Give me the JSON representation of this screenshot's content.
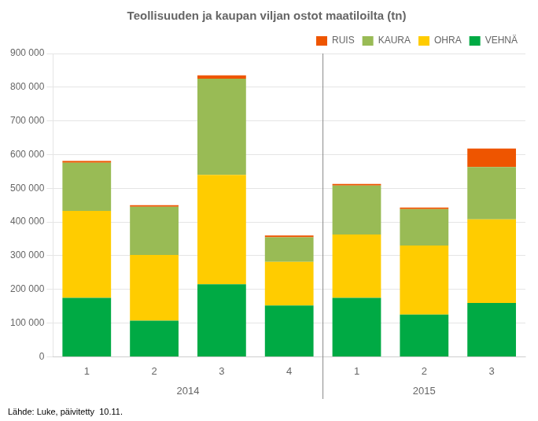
{
  "chart_data": {
    "type": "bar",
    "title": "Teollisuuden ja kaupan viljan ostot maatiloilta (tn)",
    "categories": [
      "1",
      "2",
      "3",
      "4",
      "1",
      "2",
      "3"
    ],
    "category_groups": [
      "2014",
      "2014",
      "2014",
      "2014",
      "2015",
      "2015",
      "2015"
    ],
    "series": [
      {
        "name": "VEHNÄ",
        "color": "#00aa44",
        "values": [
          175000,
          107000,
          215000,
          152000,
          175000,
          125000,
          160000
        ]
      },
      {
        "name": "OHRA",
        "color": "#ffcc00",
        "values": [
          258000,
          195000,
          325000,
          130000,
          188000,
          205000,
          248000
        ]
      },
      {
        "name": "KAURA",
        "color": "#99bb55",
        "values": [
          143000,
          143000,
          285000,
          73000,
          145000,
          108000,
          155000
        ]
      },
      {
        "name": "RUIS",
        "color": "#ee5500",
        "values": [
          5000,
          5000,
          10000,
          5000,
          5000,
          5000,
          55000
        ]
      }
    ],
    "stacked": true,
    "ylim": [
      0,
      900000
    ],
    "yticks": [
      0,
      {
        "value": 100000,
        "label": "100 000"
      },
      {
        "value": 200000,
        "label": "200 000"
      },
      {
        "value": 300000,
        "label": "300 000"
      },
      {
        "value": 400000,
        "label": "400 000"
      },
      {
        "value": 500000,
        "label": "500 000"
      },
      {
        "value": 600000,
        "label": "600 000"
      },
      {
        "value": 700000,
        "label": "700 000"
      },
      {
        "value": 800000,
        "label": "800 000"
      },
      {
        "value": 900000,
        "label": "900 000"
      }
    ],
    "grid": true,
    "legend": "upper right",
    "annotations": [
      "Lähde: Luke, päivitetty  10.11."
    ]
  }
}
